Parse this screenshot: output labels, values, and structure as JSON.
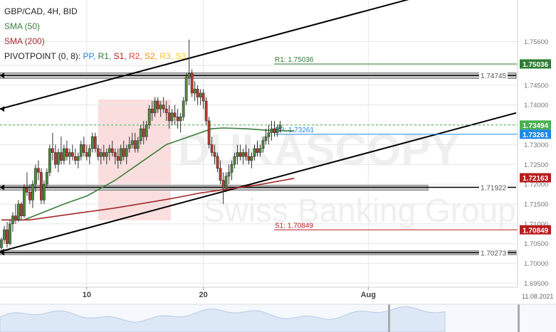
{
  "legend": {
    "title": "GBP/CAD, 4H, BID",
    "sma50": "SMA (50)",
    "sma200": "SMA (200)",
    "pivot_prefix": "PIVOTPOINT (0, 8):",
    "pivot_items": [
      {
        "label": "PP",
        "color": "#1e88e5"
      },
      {
        "label": "R1",
        "color": "#2e7d32"
      },
      {
        "label": "S1",
        "color": "#b71c1c"
      },
      {
        "label": "R2",
        "color": "#e53935"
      },
      {
        "label": "S2",
        "color": "#fb8c00"
      },
      {
        "label": "R3",
        "color": "#fbc02d"
      },
      {
        "label": "S3",
        "color": "#f9d71c"
      }
    ]
  },
  "watermark": {
    "brand": "DUKASCOPY",
    "sub": "Swiss Banking Group"
  },
  "chart_data": {
    "type": "candlestick",
    "symbol": "GBP/CAD",
    "timeframe": "4H",
    "price_type": "BID",
    "ylim": [
      1.694,
      1.7665
    ],
    "y_ticks": [
      "1.75600",
      "1.75000",
      "1.74500",
      "1.74000",
      "1.73500",
      "1.73000",
      "1.72500",
      "1.72000",
      "1.71500",
      "1.71000",
      "1.70500",
      "1.70000",
      "1.69500"
    ],
    "x_ticks": [
      {
        "label": "10",
        "bar": 30
      },
      {
        "label": "20",
        "bar": 71
      },
      {
        "label": "Aug",
        "bar": 129
      }
    ],
    "date_label": "11.08.2021",
    "total_slots": 182,
    "candles": [
      [
        1.704,
        1.7065,
        1.703,
        1.706
      ],
      [
        1.706,
        1.7095,
        1.705,
        1.7085
      ],
      [
        1.7085,
        1.7105,
        1.704,
        1.705
      ],
      [
        1.705,
        1.711,
        1.7045,
        1.71
      ],
      [
        1.71,
        1.713,
        1.708,
        1.712
      ],
      [
        1.712,
        1.715,
        1.71,
        1.711
      ],
      [
        1.711,
        1.716,
        1.7105,
        1.715
      ],
      [
        1.715,
        1.7155,
        1.711,
        1.712
      ],
      [
        1.712,
        1.72,
        1.7115,
        1.719
      ],
      [
        1.719,
        1.723,
        1.717,
        1.718
      ],
      [
        1.718,
        1.72,
        1.715,
        1.716
      ],
      [
        1.716,
        1.721,
        1.714,
        1.72
      ],
      [
        1.72,
        1.725,
        1.718,
        1.724
      ],
      [
        1.724,
        1.726,
        1.721,
        1.723
      ],
      [
        1.723,
        1.724,
        1.715,
        1.716
      ],
      [
        1.716,
        1.721,
        1.715,
        1.72
      ],
      [
        1.72,
        1.724,
        1.719,
        1.723
      ],
      [
        1.723,
        1.73,
        1.722,
        1.729
      ],
      [
        1.729,
        1.733,
        1.726,
        1.728
      ],
      [
        1.728,
        1.73,
        1.724,
        1.725
      ],
      [
        1.725,
        1.729,
        1.723,
        1.728
      ],
      [
        1.728,
        1.732,
        1.725,
        1.726
      ],
      [
        1.726,
        1.73,
        1.725,
        1.729
      ],
      [
        1.729,
        1.731,
        1.726,
        1.727
      ],
      [
        1.727,
        1.729,
        1.725,
        1.728
      ],
      [
        1.728,
        1.73,
        1.726,
        1.727
      ],
      [
        1.727,
        1.729,
        1.725,
        1.726
      ],
      [
        1.726,
        1.728,
        1.724,
        1.727
      ],
      [
        1.727,
        1.731,
        1.726,
        1.73
      ],
      [
        1.73,
        1.732,
        1.727,
        1.728
      ],
      [
        1.728,
        1.73,
        1.726,
        1.727
      ],
      [
        1.727,
        1.73,
        1.725,
        1.729
      ],
      [
        1.729,
        1.733,
        1.728,
        1.732
      ],
      [
        1.732,
        1.733,
        1.728,
        1.729
      ],
      [
        1.729,
        1.73,
        1.726,
        1.727
      ],
      [
        1.727,
        1.729,
        1.725,
        1.728
      ],
      [
        1.728,
        1.73,
        1.726,
        1.727
      ],
      [
        1.727,
        1.729,
        1.725,
        1.728
      ],
      [
        1.728,
        1.73,
        1.726,
        1.729
      ],
      [
        1.729,
        1.731,
        1.727,
        1.728
      ],
      [
        1.728,
        1.729,
        1.725,
        1.727
      ],
      [
        1.727,
        1.729,
        1.724,
        1.726
      ],
      [
        1.726,
        1.73,
        1.725,
        1.729
      ],
      [
        1.729,
        1.731,
        1.726,
        1.727
      ],
      [
        1.727,
        1.73,
        1.725,
        1.729
      ],
      [
        1.729,
        1.732,
        1.728,
        1.73
      ],
      [
        1.73,
        1.733,
        1.729,
        1.731
      ],
      [
        1.731,
        1.733,
        1.728,
        1.729
      ],
      [
        1.729,
        1.732,
        1.728,
        1.731
      ],
      [
        1.731,
        1.735,
        1.73,
        1.734
      ],
      [
        1.734,
        1.736,
        1.73,
        1.732
      ],
      [
        1.732,
        1.736,
        1.731,
        1.735
      ],
      [
        1.735,
        1.74,
        1.734,
        1.739
      ],
      [
        1.739,
        1.741,
        1.736,
        1.738
      ],
      [
        1.738,
        1.742,
        1.737,
        1.741
      ],
      [
        1.741,
        1.742,
        1.738,
        1.739
      ],
      [
        1.739,
        1.741,
        1.737,
        1.74
      ],
      [
        1.74,
        1.742,
        1.738,
        1.739
      ],
      [
        1.739,
        1.741,
        1.736,
        1.738
      ],
      [
        1.738,
        1.74,
        1.734,
        1.736
      ],
      [
        1.736,
        1.739,
        1.735,
        1.738
      ],
      [
        1.738,
        1.74,
        1.735,
        1.737
      ],
      [
        1.737,
        1.739,
        1.734,
        1.736
      ],
      [
        1.736,
        1.738,
        1.733,
        1.737
      ],
      [
        1.737,
        1.742,
        1.736,
        1.741
      ],
      [
        1.741,
        1.748,
        1.74,
        1.747
      ],
      [
        1.747,
        1.7565,
        1.745,
        1.748
      ],
      [
        1.748,
        1.749,
        1.742,
        1.743
      ],
      [
        1.743,
        1.746,
        1.741,
        1.744
      ],
      [
        1.744,
        1.745,
        1.74,
        1.742
      ],
      [
        1.742,
        1.744,
        1.74,
        1.743
      ],
      [
        1.743,
        1.744,
        1.739,
        1.741
      ],
      [
        1.741,
        1.742,
        1.735,
        1.736
      ],
      [
        1.736,
        1.737,
        1.729,
        1.73
      ],
      [
        1.73,
        1.732,
        1.727,
        1.728
      ],
      [
        1.728,
        1.73,
        1.725,
        1.727
      ],
      [
        1.727,
        1.728,
        1.723,
        1.724
      ],
      [
        1.724,
        1.726,
        1.72,
        1.721
      ],
      [
        1.721,
        1.723,
        1.715,
        1.719
      ],
      [
        1.719,
        1.723,
        1.718,
        1.722
      ],
      [
        1.722,
        1.725,
        1.72,
        1.723
      ],
      [
        1.723,
        1.726,
        1.721,
        1.725
      ],
      [
        1.725,
        1.728,
        1.724,
        1.727
      ],
      [
        1.727,
        1.73,
        1.725,
        1.728
      ],
      [
        1.728,
        1.73,
        1.726,
        1.727
      ],
      [
        1.727,
        1.729,
        1.725,
        1.728
      ],
      [
        1.728,
        1.73,
        1.726,
        1.727
      ],
      [
        1.727,
        1.729,
        1.725,
        1.726
      ],
      [
        1.726,
        1.728,
        1.724,
        1.727
      ],
      [
        1.727,
        1.73,
        1.726,
        1.729
      ],
      [
        1.729,
        1.731,
        1.727,
        1.728
      ],
      [
        1.728,
        1.73,
        1.727,
        1.729
      ],
      [
        1.729,
        1.732,
        1.728,
        1.731
      ],
      [
        1.731,
        1.734,
        1.73,
        1.732
      ],
      [
        1.732,
        1.735,
        1.73,
        1.733
      ],
      [
        1.733,
        1.736,
        1.731,
        1.734
      ],
      [
        1.734,
        1.736,
        1.732,
        1.733
      ],
      [
        1.733,
        1.735,
        1.732,
        1.734
      ],
      [
        1.734,
        1.736,
        1.733,
        1.7349
      ]
    ],
    "series": [
      {
        "name": "SMA (50)",
        "color": "#3a7d3a",
        "points": [
          [
            0,
            1.711
          ],
          [
            8,
            1.711
          ],
          [
            15,
            1.713
          ],
          [
            22,
            1.715
          ],
          [
            30,
            1.717
          ],
          [
            40,
            1.721
          ],
          [
            50,
            1.726
          ],
          [
            58,
            1.73
          ],
          [
            66,
            1.732
          ],
          [
            74,
            1.734
          ],
          [
            78,
            1.7342
          ],
          [
            86,
            1.734
          ],
          [
            96,
            1.7335
          ],
          [
            103,
            1.7335
          ]
        ]
      },
      {
        "name": "SMA (200)",
        "color": "#a52a2a",
        "points": [
          [
            0,
            1.711
          ],
          [
            10,
            1.711
          ],
          [
            20,
            1.712
          ],
          [
            30,
            1.713
          ],
          [
            40,
            1.714
          ],
          [
            50,
            1.7152
          ],
          [
            60,
            1.7164
          ],
          [
            70,
            1.7178
          ],
          [
            80,
            1.7188
          ],
          [
            90,
            1.7198
          ],
          [
            103,
            1.7215
          ]
        ]
      }
    ],
    "trendlines": [
      {
        "name": "channel-upper",
        "color": "#000000",
        "points": [
          [
            0,
            1.739
          ],
          [
            145,
            1.767
          ]
        ]
      },
      {
        "name": "channel-lower",
        "color": "#000000",
        "points": [
          [
            0,
            1.703
          ],
          [
            181,
            1.738
          ]
        ]
      },
      {
        "name": "level-1.74745",
        "color": "#000000",
        "points": [
          [
            0,
            1.74745
          ],
          [
            181,
            1.74745
          ]
        ]
      },
      {
        "name": "level-1.71922",
        "color": "#000000",
        "points": [
          [
            0,
            1.71922
          ],
          [
            181,
            1.71922
          ]
        ]
      },
      {
        "name": "level-1.70273",
        "color": "#000000",
        "points": [
          [
            0,
            1.70273
          ],
          [
            181,
            1.70273
          ]
        ]
      }
    ],
    "zones": [
      {
        "name": "zone-upper",
        "from": 1.7467,
        "to": 1.7481,
        "x_end": 181
      },
      {
        "name": "zone-middle",
        "from": 1.7185,
        "to": 1.7197,
        "x_end": 150
      },
      {
        "name": "zone-lower",
        "from": 1.7022,
        "to": 1.7032,
        "x_end": 181
      }
    ],
    "level_labels": [
      {
        "text": "1.74745",
        "value": 1.74745
      },
      {
        "text": "1.71922",
        "value": 1.71922
      },
      {
        "text": "1.70273",
        "value": 1.70273
      }
    ],
    "pivots": [
      {
        "label": "R1: 1.75036",
        "value": 1.75036,
        "color": "#2e7d32"
      },
      {
        "label": "PP: 1.73261",
        "value": 1.73261,
        "color": "#1e88e5"
      },
      {
        "label": "S1: 1.70849",
        "value": 1.70849,
        "color": "#b71c1c"
      }
    ],
    "price_tags": [
      {
        "text": "1.75036",
        "value": 1.75036,
        "bg": "#2e7d32",
        "fg": "#ffffff"
      },
      {
        "text": "1.73494",
        "value": 1.73494,
        "bg": "#4caf50",
        "fg": "#ffffff"
      },
      {
        "text": "1.73261",
        "value": 1.73261,
        "bg": "#1e88e5",
        "fg": "#ffffff"
      },
      {
        "text": "1.72163",
        "value": 1.72163,
        "bg": "#b71c1c",
        "fg": "#ffffff"
      },
      {
        "text": "1.70849",
        "value": 1.70849,
        "bg": "#b71c1c",
        "fg": "#ffffff"
      }
    ],
    "current_price": 1.73494,
    "grid": true,
    "colors": {
      "candle_up": "#4c8c3a",
      "candle_down": "#c0392b",
      "grid": "#e6e6e6",
      "navigator_fill": "#dde8f6",
      "navigator_line": "#b8cbe6"
    }
  }
}
